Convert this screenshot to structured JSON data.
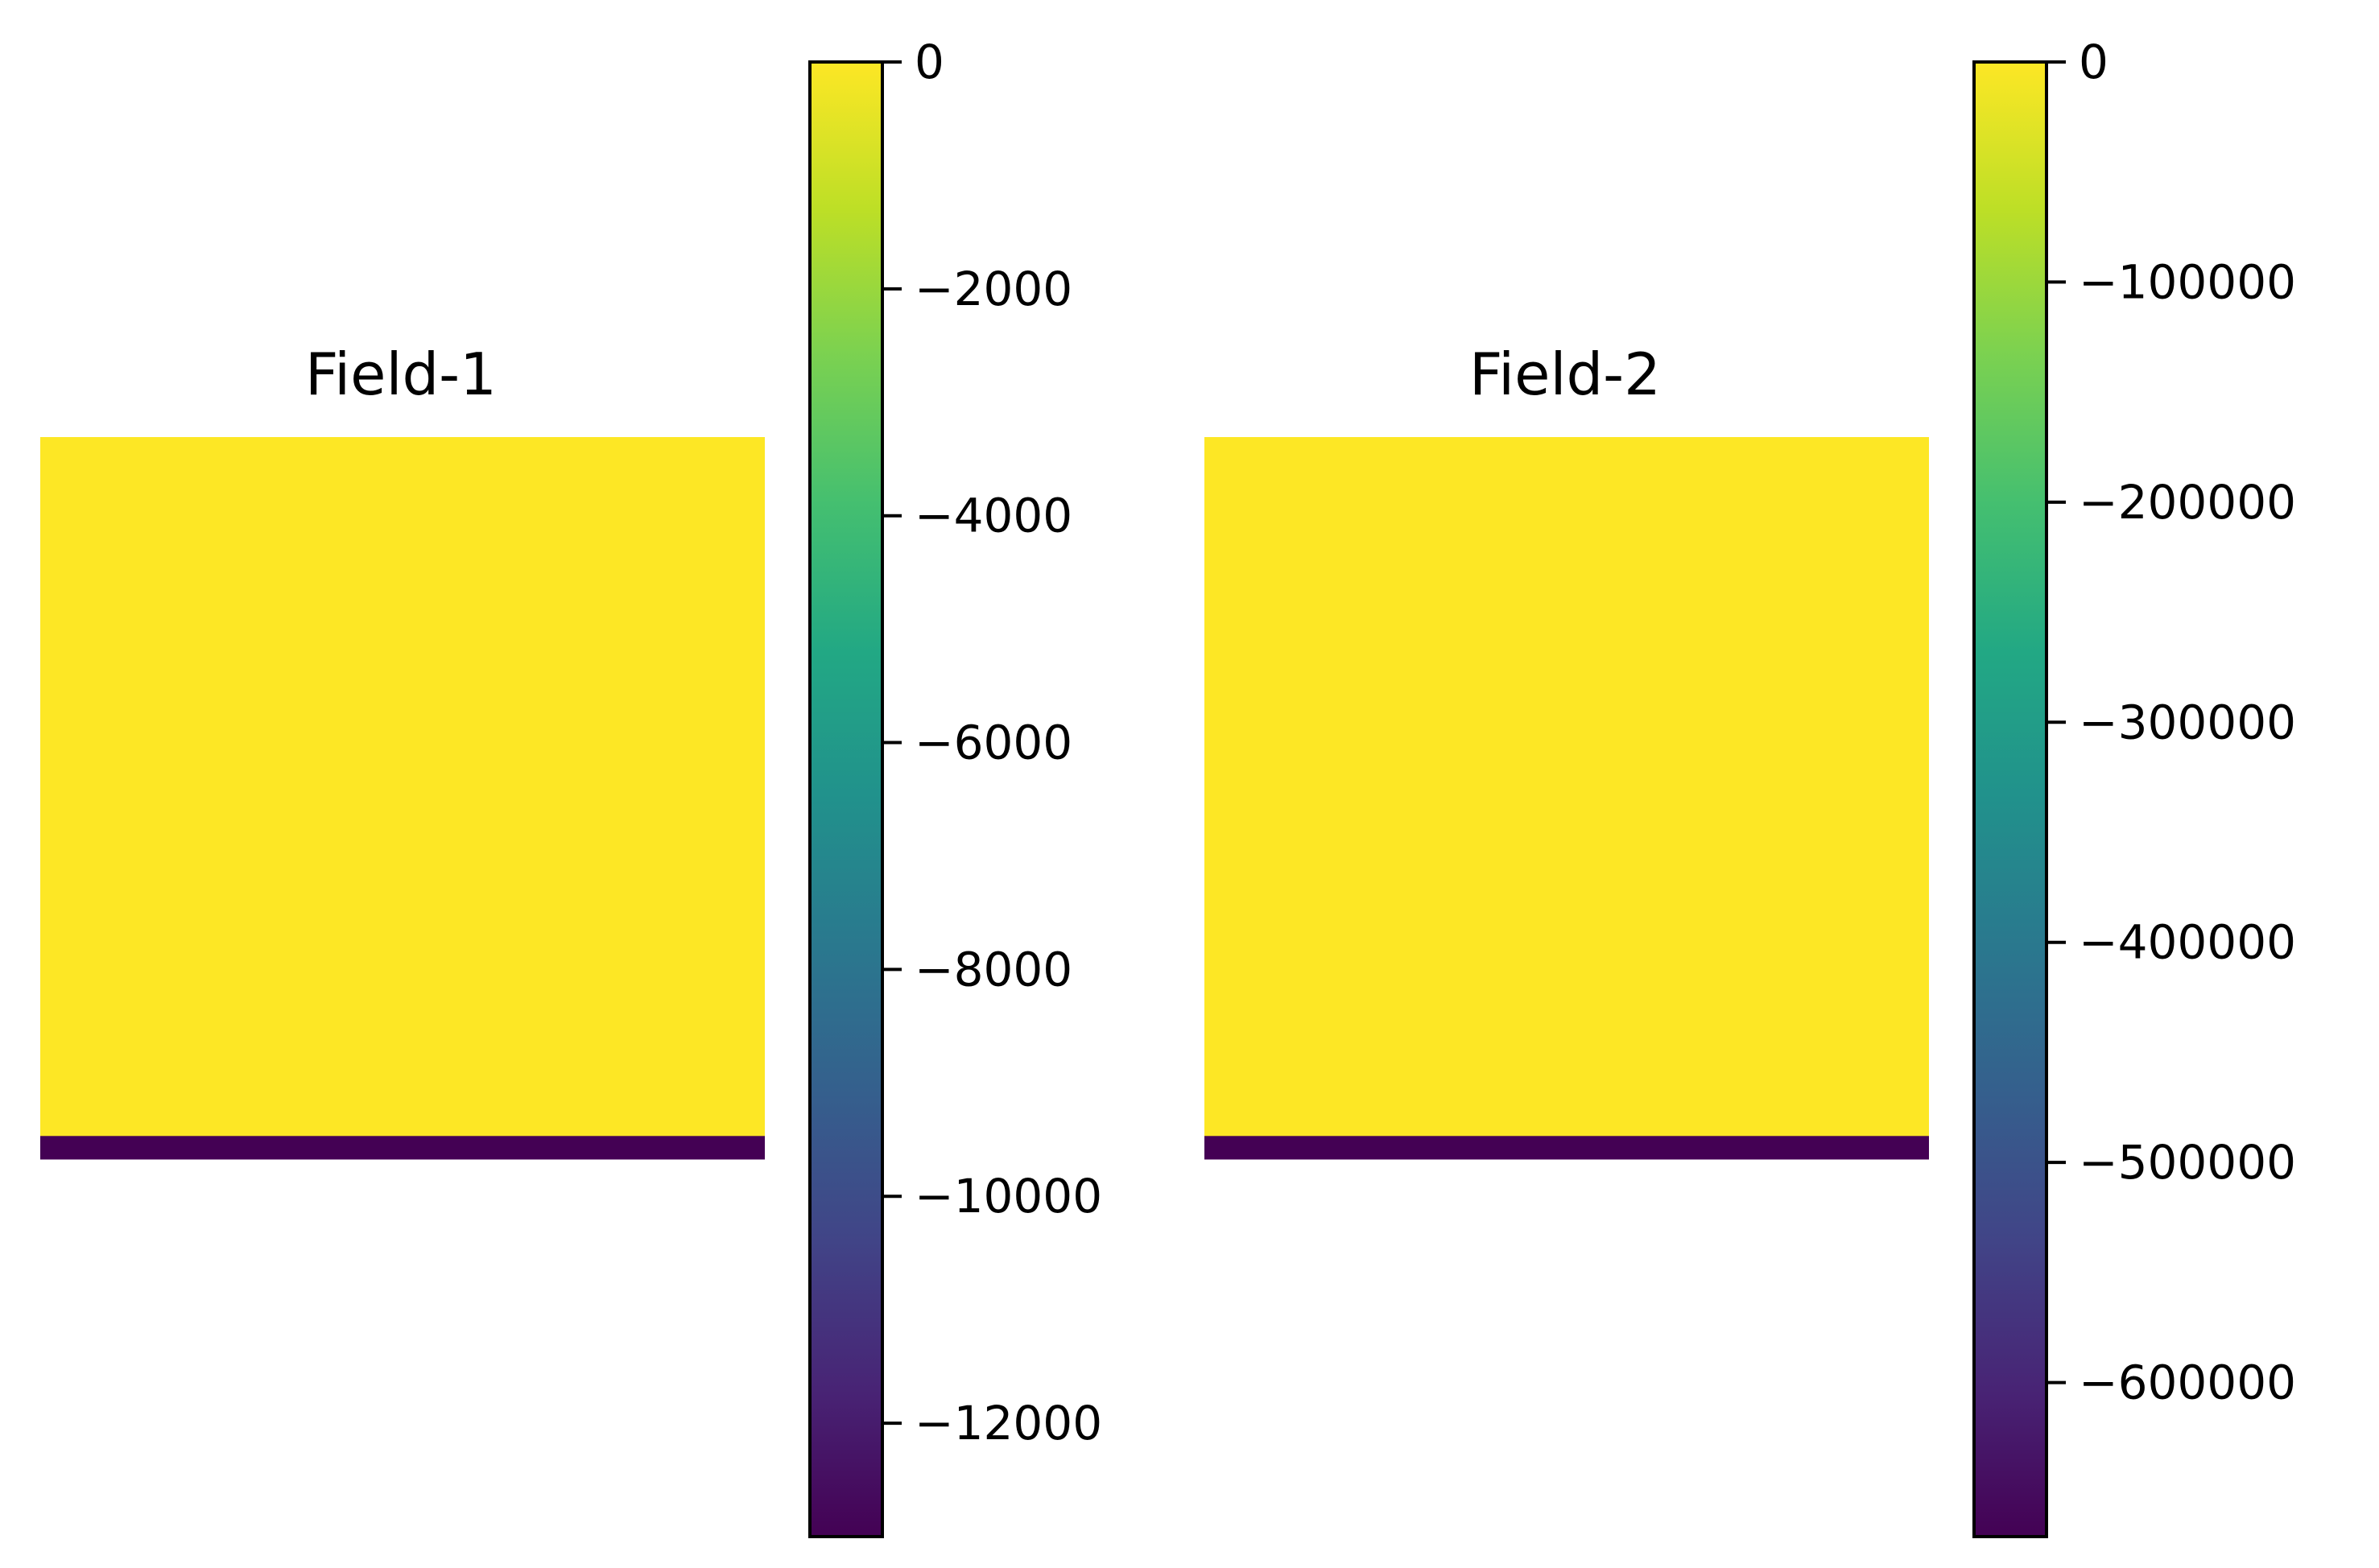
{
  "chart_data": [
    {
      "type": "heatmap",
      "title": "Field-1",
      "colormap": "viridis",
      "grid": false,
      "axes_visible": false,
      "colorbar": {
        "position": "right",
        "range": [
          -13000,
          0
        ],
        "ticks": [
          0,
          -2000,
          -4000,
          -6000,
          -8000,
          -10000,
          -12000
        ],
        "tick_labels": [
          "0",
          "−2000",
          "−4000",
          "−6000",
          "−8000",
          "−10000",
          "−12000"
        ]
      },
      "rows": [
        {
          "value": 0,
          "color": "#fde725",
          "share": 0.968
        },
        {
          "value": -13000,
          "color": "#440154",
          "share": 0.032
        }
      ]
    },
    {
      "type": "heatmap",
      "title": "Field-2",
      "colormap": "viridis",
      "grid": false,
      "axes_visible": false,
      "colorbar": {
        "position": "right",
        "range": [
          -670000,
          0
        ],
        "ticks": [
          0,
          -100000,
          -200000,
          -300000,
          -400000,
          -500000,
          -600000
        ],
        "tick_labels": [
          "0",
          "−100000",
          "−200000",
          "−300000",
          "−400000",
          "−500000",
          "−600000"
        ]
      },
      "rows": [
        {
          "value": 0,
          "color": "#fde725",
          "share": 0.968
        },
        {
          "value": -670000,
          "color": "#440154",
          "share": 0.032
        }
      ]
    }
  ]
}
